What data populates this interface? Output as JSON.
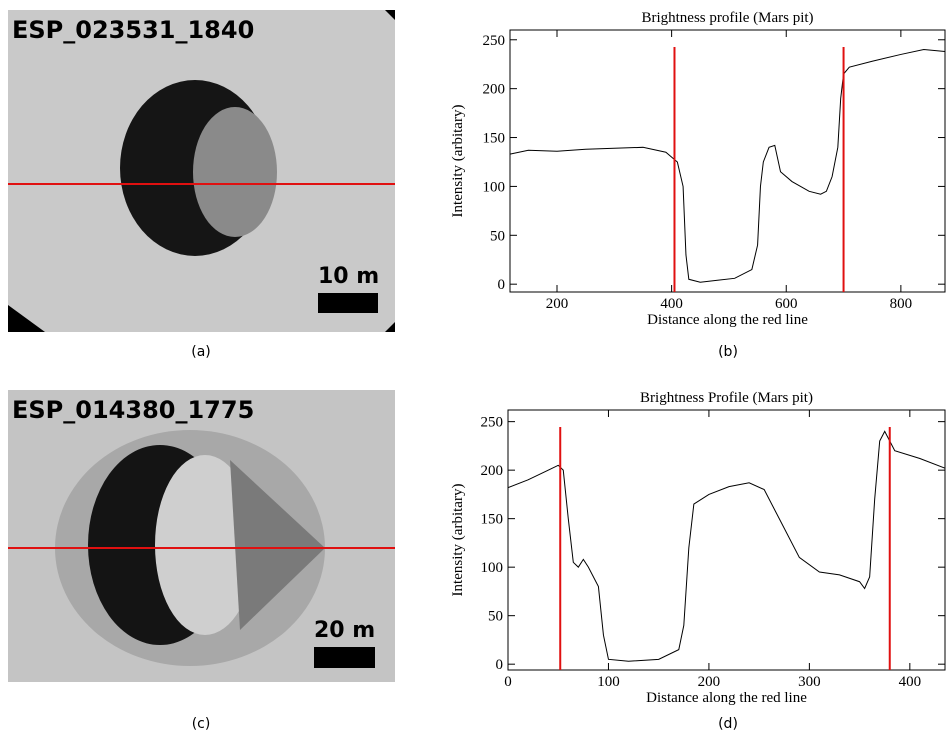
{
  "images": [
    {
      "id_label": "ESP_023531_1840",
      "scale_label": "10 m",
      "caption": "(a)"
    },
    {
      "id_label": "ESP_014380_1775",
      "scale_label": "20 m",
      "caption": "(c)"
    }
  ],
  "chart_data": [
    {
      "type": "line",
      "title": "Brightness profile (Mars pit)",
      "x_label": "Distance along the red line",
      "y_label": "Intensity (arbitary)",
      "caption": "(b)",
      "x": [
        118,
        150,
        200,
        250,
        300,
        350,
        390,
        400,
        410,
        420,
        425,
        430,
        450,
        480,
        510,
        540,
        550,
        555,
        560,
        570,
        580,
        590,
        610,
        640,
        660,
        670,
        680,
        690,
        695,
        700,
        710,
        750,
        800,
        840,
        877
      ],
      "values": [
        133,
        137,
        136,
        138,
        139,
        140,
        135,
        130,
        125,
        100,
        30,
        5,
        2,
        4,
        6,
        15,
        40,
        100,
        125,
        140,
        142,
        115,
        105,
        95,
        92,
        95,
        110,
        140,
        190,
        215,
        222,
        228,
        235,
        240,
        238
      ],
      "color": "#000000",
      "markers": [
        405,
        700
      ],
      "marker_color": "#e01010",
      "xlim": [
        118,
        877
      ],
      "ylim": [
        -8,
        260
      ],
      "xticks": [
        200,
        400,
        600,
        800
      ],
      "yticks": [
        0,
        50,
        100,
        150,
        200,
        250
      ]
    },
    {
      "type": "line",
      "title": "Brightness Profile (Mars pit)",
      "x_label": "Distance along the red line",
      "y_label": "Intensity (arbitary)",
      "caption": "(d)",
      "x": [
        0,
        20,
        40,
        50,
        55,
        60,
        65,
        70,
        75,
        80,
        90,
        95,
        100,
        120,
        150,
        170,
        175,
        180,
        185,
        200,
        220,
        240,
        255,
        270,
        290,
        310,
        330,
        350,
        355,
        360,
        365,
        370,
        375,
        385,
        410,
        435
      ],
      "values": [
        182,
        190,
        200,
        205,
        200,
        150,
        105,
        100,
        108,
        100,
        80,
        30,
        5,
        3,
        5,
        15,
        40,
        120,
        165,
        175,
        183,
        187,
        180,
        150,
        110,
        95,
        92,
        85,
        78,
        90,
        170,
        230,
        240,
        220,
        212,
        202
      ],
      "color": "#000000",
      "markers": [
        52,
        380
      ],
      "marker_color": "#e01010",
      "xlim": [
        0,
        435
      ],
      "ylim": [
        -6,
        262
      ],
      "xticks": [
        0,
        100,
        200,
        300,
        400
      ],
      "yticks": [
        0,
        50,
        100,
        150,
        200,
        250
      ]
    }
  ]
}
